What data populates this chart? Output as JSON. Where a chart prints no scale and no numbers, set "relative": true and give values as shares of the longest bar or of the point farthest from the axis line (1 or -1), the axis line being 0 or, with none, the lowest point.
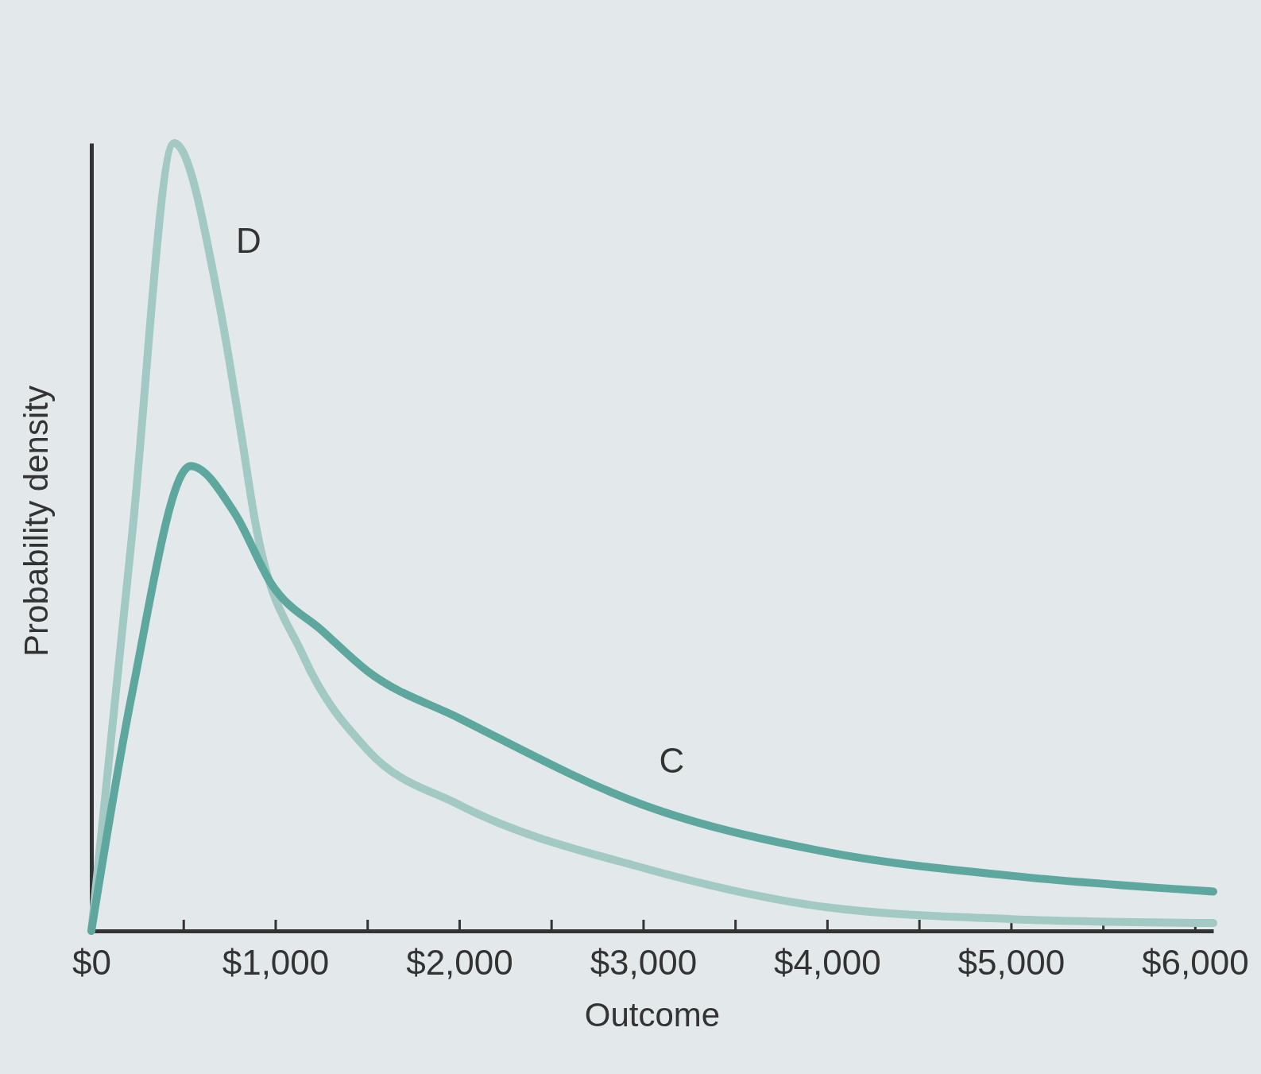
{
  "chart_data": {
    "type": "line",
    "relative": true,
    "xlabel": "Outcome",
    "ylabel": "Probability density",
    "xlim": [
      0,
      6100
    ],
    "xticks": [
      {
        "value": 0,
        "label": "$0"
      },
      {
        "value": 500,
        "label": null
      },
      {
        "value": 1000,
        "label": "$1,000"
      },
      {
        "value": 1500,
        "label": null
      },
      {
        "value": 2000,
        "label": "$2,000"
      },
      {
        "value": 2500,
        "label": null
      },
      {
        "value": 3000,
        "label": "$3,000"
      },
      {
        "value": 3500,
        "label": null
      },
      {
        "value": 4000,
        "label": "$4,000"
      },
      {
        "value": 4500,
        "label": null
      },
      {
        "value": 5000,
        "label": "$5,000"
      },
      {
        "value": 5500,
        "label": null
      },
      {
        "value": 6000,
        "label": "$6,000"
      }
    ],
    "series": [
      {
        "name": "D",
        "color": "#a3c9c4",
        "x": [
          0,
          220,
          450,
          700,
          815,
          890,
          1150,
          1500,
          2000,
          3000,
          4000,
          5000,
          6100
        ],
        "values": [
          0,
          0.5,
          1,
          0.79,
          0.63,
          0.52,
          0.35,
          0.23,
          0.16,
          0.08,
          0.03,
          0.015,
          0.01
        ]
      },
      {
        "name": "C",
        "color": "#5ea79e",
        "x": [
          0,
          220,
          540,
          780,
          980,
          1260,
          1500,
          2000,
          3000,
          4000,
          5000,
          6100
        ],
        "values": [
          0,
          0.3,
          0.59,
          0.53,
          0.44,
          0.38,
          0.33,
          0.27,
          0.16,
          0.1,
          0.07,
          0.05
        ]
      }
    ],
    "legend": false,
    "grid": false,
    "line_style": "solid",
    "marker": "none"
  }
}
